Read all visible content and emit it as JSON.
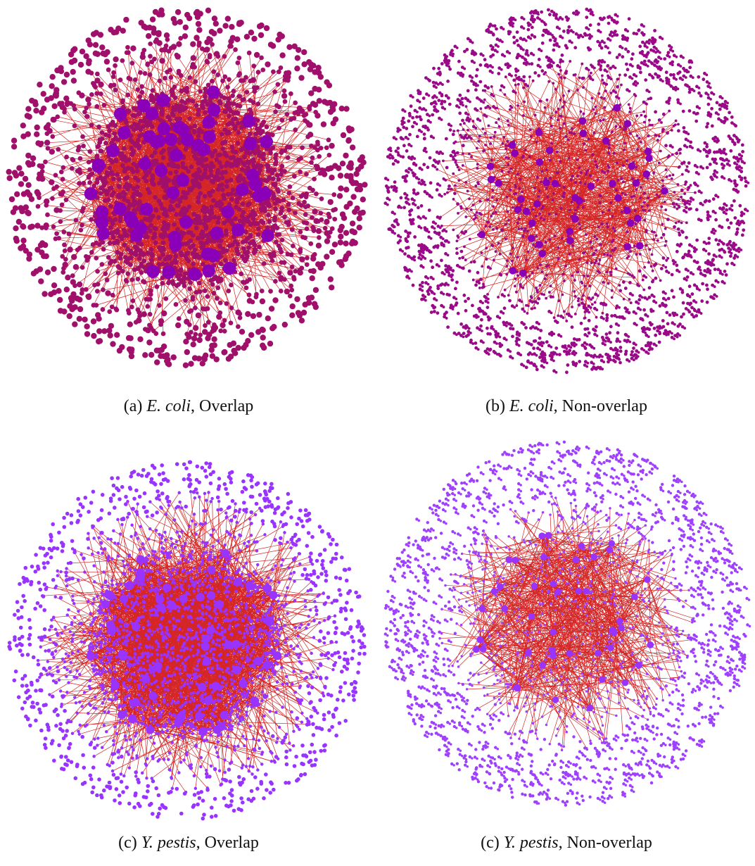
{
  "panels": [
    {
      "label": "(a)",
      "species": "E. coli",
      "rest": ", Overlap"
    },
    {
      "label": "(b)",
      "species": "E. coli",
      "rest": ", Non-overlap"
    },
    {
      "label": "(c)",
      "species": "Y. pestis",
      "rest": ", Overlap"
    },
    {
      "label": "(c)",
      "species": "Y. pestis",
      "rest": ", Non-overlap"
    }
  ]
}
